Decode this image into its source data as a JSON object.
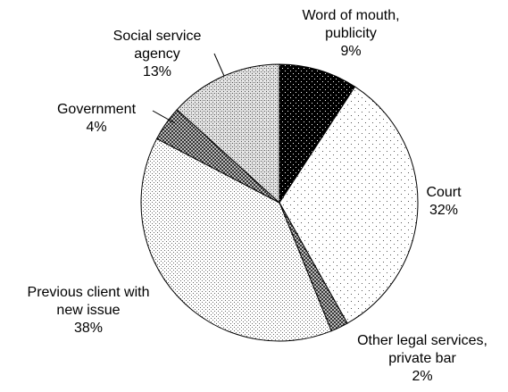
{
  "chart_data": {
    "type": "pie",
    "slices": [
      {
        "label": [
          "Word of mouth,",
          "publicity"
        ],
        "value": 9,
        "value_label": "9%",
        "pattern": "black-dots"
      },
      {
        "label": [
          "Court"
        ],
        "value": 32,
        "value_label": "32%",
        "pattern": "sparse-dots"
      },
      {
        "label": [
          "Other legal services,",
          "private bar"
        ],
        "value": 2,
        "value_label": "2%",
        "pattern": "dark-checker"
      },
      {
        "label": [
          "Previous client with",
          "new issue"
        ],
        "value": 38,
        "value_label": "38%",
        "pattern": "fine-dots"
      },
      {
        "label": [
          "Government"
        ],
        "value": 4,
        "value_label": "4%",
        "pattern": "dark-checker"
      },
      {
        "label": [
          "Social service",
          "agency"
        ],
        "value": 13,
        "value_label": "13%",
        "pattern": "medium-checker"
      }
    ],
    "start_angle_deg": 0,
    "direction": "clockwise"
  }
}
